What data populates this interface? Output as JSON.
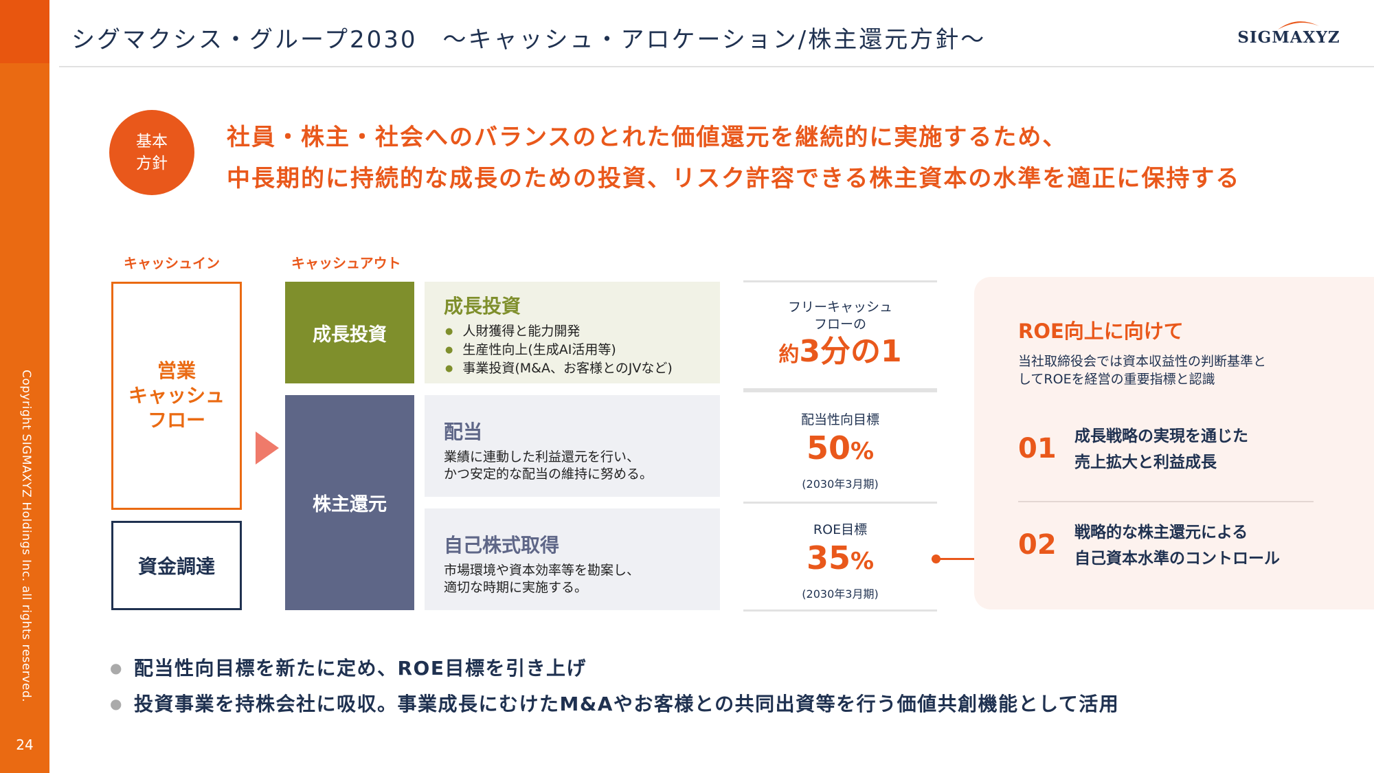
{
  "sidebar": {
    "copyright": "Copyright SIGMAXYZ Holdings Inc. all rights reserved.",
    "page_number": "24"
  },
  "header": {
    "title": "シグマクシス・グループ2030　～キャッシュ・アロケーション/株主還元方針～",
    "logo_text": "SIGMAXYZ",
    "colors": {
      "accent": "#e9581b",
      "navy": "#1f3150"
    }
  },
  "policy": {
    "badge_line1": "基本",
    "badge_line2": "方針",
    "line1": "社員・株主・社会へのバランスのとれた価値還元を継続的に実施するため、",
    "line2": "中長期的に持続的な成長のための投資、リスク許容できる株主資本の水準を適正に保持する"
  },
  "cash_in": {
    "label": "キャッシュイン",
    "ocf_line1": "営業",
    "ocf_line2": "キャッシュ",
    "ocf_line3": "フロー",
    "funding": "資金調達"
  },
  "cash_out": {
    "label": "キャッシュアウト",
    "growth_tag": "成長投資",
    "shareholder_tag": "株主還元",
    "growth": {
      "title": "成長投資",
      "bullets": [
        "人財獲得と能力開発",
        "生産性向上(生成AI活用等)",
        "事業投資(M&A、お客様とのJVなど)"
      ]
    },
    "dividend": {
      "title": "配当",
      "line1": "業績に連動した利益還元を行い、",
      "line2": "かつ安定的な配当の維持に努める。"
    },
    "buyback": {
      "title": "自己株式取得",
      "line1": "市場環境や資本効率等を勘案し、",
      "line2": "適切な時期に実施する。"
    }
  },
  "metrics": {
    "fcf_label1": "フリーキャッシュ",
    "fcf_label2": "フローの",
    "fcf_prefix": "約",
    "fcf_value": "3分の1",
    "payout_label": "配当性向目標",
    "payout_value": "50",
    "payout_unit": "%",
    "payout_period": "(2030年3月期)",
    "roe_label": "ROE目標",
    "roe_value": "35",
    "roe_unit": "%",
    "roe_period": "(2030年3月期)"
  },
  "roe_panel": {
    "title": "ROE向上に向けて",
    "desc1": "当社取締役会では資本収益性の判断基準と",
    "desc2": "してROEを経営の重要指標と認識",
    "items": [
      {
        "num": "01",
        "line1": "成長戦略の実現を通じた",
        "line2": "売上拡大と利益成長"
      },
      {
        "num": "02",
        "line1": "戦略的な株主還元による",
        "line2": "自己資本水準のコントロール"
      }
    ]
  },
  "notes": [
    "配当性向目標を新たに定め、ROE目標を引き上げ",
    "投資事業を持株会社に吸収。事業成長にむけたM&Aやお客様との共同出資等を行う価値共創機能として活用"
  ]
}
